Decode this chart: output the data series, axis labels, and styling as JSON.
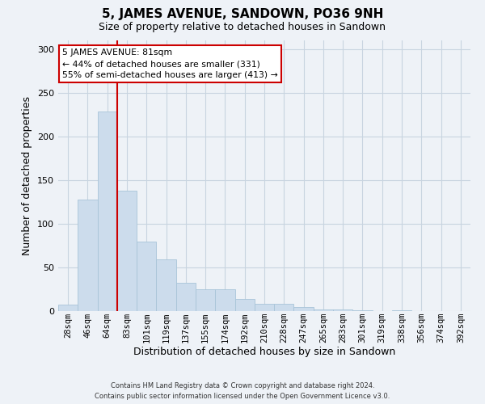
{
  "title": "5, JAMES AVENUE, SANDOWN, PO36 9NH",
  "subtitle": "Size of property relative to detached houses in Sandown",
  "xlabel": "Distribution of detached houses by size in Sandown",
  "ylabel": "Number of detached properties",
  "bar_labels": [
    "28sqm",
    "46sqm",
    "64sqm",
    "83sqm",
    "101sqm",
    "119sqm",
    "137sqm",
    "155sqm",
    "174sqm",
    "192sqm",
    "210sqm",
    "228sqm",
    "247sqm",
    "265sqm",
    "283sqm",
    "301sqm",
    "319sqm",
    "338sqm",
    "356sqm",
    "374sqm",
    "392sqm"
  ],
  "bar_values": [
    7,
    128,
    229,
    138,
    80,
    59,
    32,
    25,
    25,
    14,
    8,
    8,
    5,
    2,
    2,
    1,
    0,
    1,
    0,
    0,
    0
  ],
  "bar_color": "#ccdcec",
  "bar_edge_color": "#a8c4d8",
  "vline_x_index": 2.5,
  "vline_color": "#cc0000",
  "ylim": [
    0,
    310
  ],
  "yticks": [
    0,
    50,
    100,
    150,
    200,
    250,
    300
  ],
  "annotation_title": "5 JAMES AVENUE: 81sqm",
  "annotation_line1": "← 44% of detached houses are smaller (331)",
  "annotation_line2": "55% of semi-detached houses are larger (413) →",
  "annotation_box_facecolor": "#ffffff",
  "annotation_box_edgecolor": "#cc0000",
  "footer_line1": "Contains HM Land Registry data © Crown copyright and database right 2024.",
  "footer_line2": "Contains public sector information licensed under the Open Government Licence v3.0.",
  "background_color": "#eef2f7",
  "grid_color": "#c8d4e0",
  "title_fontsize": 11,
  "subtitle_fontsize": 9,
  "axis_label_fontsize": 8,
  "tick_fontsize": 7.5
}
